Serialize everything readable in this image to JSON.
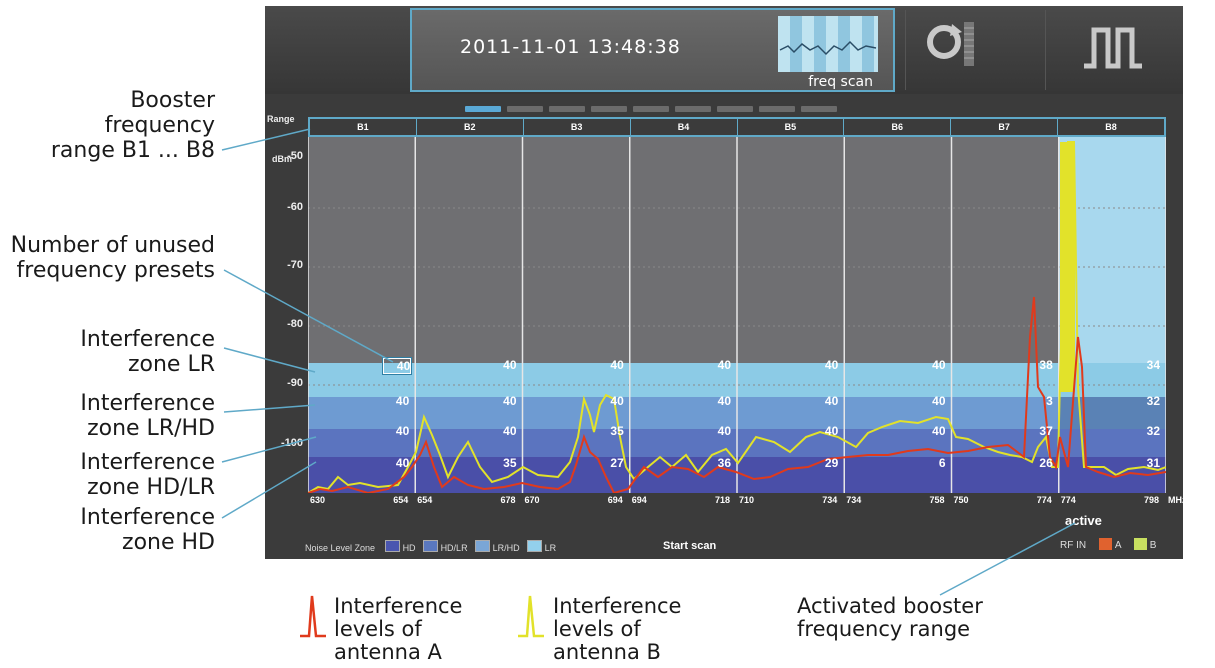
{
  "header": {
    "datetime": "2011-11-01  13:48:38",
    "freq_scan_label": "freq scan",
    "refresh_icon": "refresh-icon",
    "signal_icon": "pulse-signal-icon",
    "pager_count": 9,
    "pager_active_index": 0
  },
  "axis": {
    "range_label": "Range",
    "unit_label": "dBm",
    "y_ticks": [
      "-50",
      "-60",
      "-70",
      "-80",
      "-90",
      "-100"
    ],
    "x_unit": "MHz"
  },
  "bands": [
    {
      "label": "B1",
      "start": "630",
      "end": "654",
      "presets": [
        "40",
        "40",
        "40",
        "40"
      ]
    },
    {
      "label": "B2",
      "start": "654",
      "end": "678",
      "presets": [
        "40",
        "40",
        "40",
        "35"
      ]
    },
    {
      "label": "B3",
      "start": "670",
      "end": "694",
      "presets": [
        "40",
        "40",
        "35",
        "27"
      ]
    },
    {
      "label": "B4",
      "start": "694",
      "end": "718",
      "presets": [
        "40",
        "40",
        "40",
        "36"
      ]
    },
    {
      "label": "B5",
      "start": "710",
      "end": "734",
      "presets": [
        "40",
        "40",
        "40",
        "29"
      ]
    },
    {
      "label": "B6",
      "start": "734",
      "end": "758",
      "presets": [
        "40",
        "40",
        "40",
        "6"
      ]
    },
    {
      "label": "B7",
      "start": "750",
      "end": "774",
      "presets": [
        "38",
        "3",
        "37",
        "26"
      ]
    },
    {
      "label": "B8",
      "start": "774",
      "end": "798",
      "presets": [
        "34",
        "32",
        "32",
        "31"
      ]
    }
  ],
  "active_band": "B8",
  "active_label": "active",
  "legend": {
    "title": "Noise Level Zone",
    "items": [
      {
        "label": "HD",
        "color": "#4a56b0"
      },
      {
        "label": "HD/LR",
        "color": "#5a78bf"
      },
      {
        "label": "LR/HD",
        "color": "#7aa6d6"
      },
      {
        "label": "LR",
        "color": "#93d0ec"
      }
    ]
  },
  "start_scan_label": "Start scan",
  "rf_in": {
    "label": "RF IN",
    "items": [
      {
        "label": "A",
        "color": "#e0622f"
      },
      {
        "label": "B",
        "color": "#c8e060"
      }
    ]
  },
  "colors": {
    "antenna_a": "#e03a1c",
    "antenna_b": "#e2e22a",
    "zone_lr": "#8ccbe6",
    "zone_lr_hd": "#6e9bd2",
    "zone_hd_lr": "#5b74bf",
    "zone_hd": "#4a4fa8",
    "plot_bg": "#6f6f72",
    "active_bg": "#a8d8ee"
  },
  "callouts": {
    "booster_range": [
      "Booster",
      "frequency",
      "range B1 ... B8"
    ],
    "unused_presets": [
      "Number of unused",
      "frequency presets"
    ],
    "zone_lr": [
      "Interference",
      "zone LR"
    ],
    "zone_lr_hd": [
      "Interference",
      "zone LR/HD"
    ],
    "zone_hd_lr": [
      "Interference",
      "zone HD/LR"
    ],
    "zone_hd": [
      "Interference",
      "zone HD"
    ]
  },
  "captions": {
    "antenna_a": [
      "Interference",
      "levels of",
      "antenna A"
    ],
    "antenna_b": [
      "Interference",
      "levels of",
      "antenna B"
    ],
    "activated": [
      "Activated booster",
      "frequency range"
    ]
  }
}
